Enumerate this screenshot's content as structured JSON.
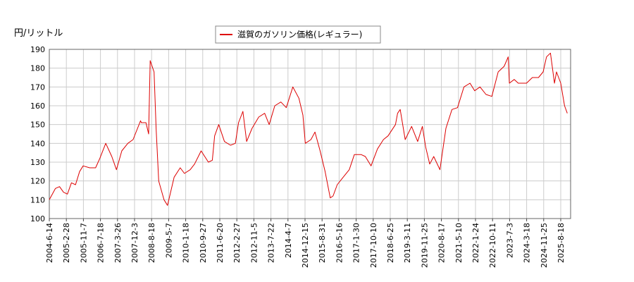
{
  "chart_data": {
    "type": "line",
    "ylabel": "円/リットル",
    "ylim": [
      100,
      190
    ],
    "yticks": [
      100,
      110,
      120,
      130,
      140,
      150,
      160,
      170,
      180,
      190
    ],
    "xtick_labels": [
      "2004-6-14",
      "2005-2-28",
      "2005-11-7",
      "2006-7-18",
      "2007-3-26",
      "2007-12-3",
      "2008-8-18",
      "2009-5-7",
      "2010-1-18",
      "2010-9-27",
      "2011-6-20",
      "2012-2-27",
      "2012-11-5",
      "2013-7-22",
      "2014-4-7",
      "2014-12-15",
      "2015-8-31",
      "2016-5-16",
      "2017-1-30",
      "2017-10-10",
      "2018-6-25",
      "2019-3-11",
      "2019-11-25",
      "2020-8-17",
      "2021-5-10",
      "2022-1-24",
      "2022-10-11",
      "2023-7-3",
      "2024-3-18",
      "2024-11-25",
      "2025-8-18"
    ],
    "grid": true,
    "legend_position": "top-center",
    "series": [
      {
        "name": "滋賀のガソリン価格(レギュラー)",
        "color": "#dd0000",
        "x": [
          "2004-6-14",
          "2004-9-15",
          "2004-11-15",
          "2005-1-15",
          "2005-3-15",
          "2005-5-15",
          "2005-7-15",
          "2005-9-15",
          "2005-11-7",
          "2006-2-15",
          "2006-5-15",
          "2006-7-18",
          "2006-10-15",
          "2007-1-15",
          "2007-3-26",
          "2007-6-15",
          "2007-9-15",
          "2007-12-3",
          "2008-3-25",
          "2008-4-5",
          "2008-6-15",
          "2008-7-25",
          "2008-8-18",
          "2008-10-15",
          "2008-11-15",
          "2008-12-25",
          "2009-3-15",
          "2009-5-7",
          "2009-8-15",
          "2009-11-15",
          "2010-1-18",
          "2010-4-15",
          "2010-6-20",
          "2010-9-27",
          "2011-1-15",
          "2011-3-15",
          "2011-4-20",
          "2011-6-20",
          "2011-9-15",
          "2011-12-15",
          "2012-2-27",
          "2012-4-15",
          "2012-6-20",
          "2012-8-15",
          "2012-11-5",
          "2013-2-15",
          "2013-5-15",
          "2013-7-22",
          "2013-10-15",
          "2014-1-15",
          "2014-4-7",
          "2014-7-15",
          "2014-10-15",
          "2014-12-15",
          "2015-1-20",
          "2015-4-15",
          "2015-6-15",
          "2015-8-31",
          "2015-11-15",
          "2016-2-1",
          "2016-3-15",
          "2016-5-16",
          "2016-8-15",
          "2016-11-15",
          "2017-1-30",
          "2017-5-15",
          "2017-7-15",
          "2017-10-10",
          "2018-1-15",
          "2018-4-15",
          "2018-6-25",
          "2018-10-15",
          "2018-11-15",
          "2018-12-25",
          "2019-3-11",
          "2019-6-15",
          "2019-9-15",
          "2019-11-25",
          "2020-1-15",
          "2020-3-15",
          "2020-5-15",
          "2020-8-17",
          "2020-11-15",
          "2021-2-15",
          "2021-5-10",
          "2021-8-15",
          "2021-11-15",
          "2022-1-24",
          "2022-4-15",
          "2022-7-15",
          "2022-10-11",
          "2023-1-15",
          "2023-4-15",
          "2023-6-15",
          "2023-7-3",
          "2023-9-15",
          "2023-11-15",
          "2024-1-15",
          "2024-3-18",
          "2024-6-15",
          "2024-9-15",
          "2024-11-25",
          "2025-1-15",
          "2025-3-15",
          "2025-5-15",
          "2025-6-15",
          "2025-8-18",
          "2025-10-15",
          "2025-11-25"
        ],
        "y": [
          110,
          116,
          117,
          114,
          113,
          119,
          118,
          125,
          128,
          127,
          127,
          132,
          140,
          133,
          126,
          136,
          140,
          142,
          152,
          151,
          151,
          145,
          184,
          178,
          148,
          120,
          110,
          107,
          122,
          127,
          124,
          126,
          129,
          136,
          130,
          131,
          144,
          150,
          141,
          139,
          140,
          151,
          157,
          141,
          148,
          154,
          156,
          150,
          160,
          162,
          159,
          170,
          164,
          155,
          140,
          142,
          146,
          136,
          125,
          111,
          112,
          118,
          122,
          126,
          134,
          134,
          133,
          128,
          137,
          142,
          144,
          150,
          156,
          158,
          142,
          149,
          141,
          149,
          138,
          129,
          133,
          126,
          148,
          158,
          159,
          170,
          172,
          168,
          170,
          166,
          165,
          178,
          181,
          186,
          172,
          174,
          172,
          172,
          172,
          175,
          175,
          178,
          186,
          188,
          172,
          178,
          172,
          160,
          156
        ]
      }
    ]
  }
}
